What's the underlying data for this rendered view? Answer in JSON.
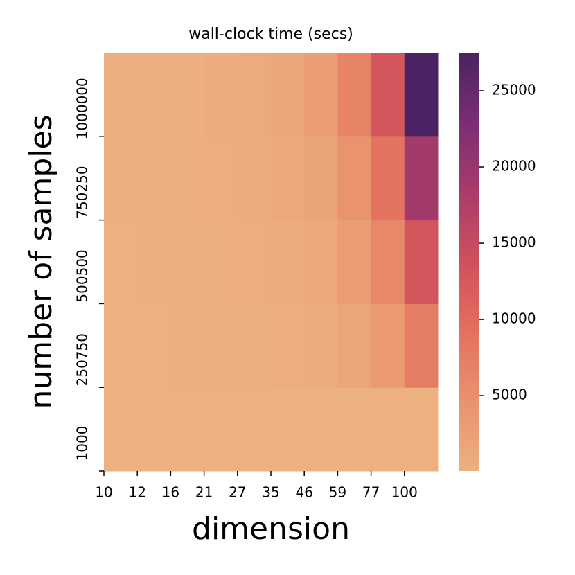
{
  "chart_data": {
    "type": "heatmap",
    "title": "wall-clock time (secs)",
    "x_label": "dimension",
    "y_label": "number of samples",
    "x_categories": [
      10,
      12,
      16,
      21,
      27,
      35,
      46,
      59,
      77,
      100
    ],
    "y_categories": [
      1000,
      250750,
      500500,
      750250,
      1000000
    ],
    "values": [
      [
        50,
        50,
        50,
        50,
        50,
        60,
        60,
        60,
        60,
        70
      ],
      [
        70,
        100,
        150,
        200,
        300,
        500,
        800,
        1800,
        3500,
        7500
      ],
      [
        100,
        150,
        200,
        300,
        500,
        800,
        1400,
        3000,
        6000,
        13000
      ],
      [
        150,
        200,
        300,
        450,
        700,
        1200,
        2100,
        4500,
        9000,
        19000
      ],
      [
        200,
        300,
        400,
        600,
        900,
        1600,
        2800,
        6500,
        13000,
        27500
      ]
    ],
    "clim": [
      50,
      27500
    ],
    "colorbar_ticks": [
      5000,
      10000,
      15000,
      20000,
      25000
    ],
    "colorscale": [
      "#edb081",
      "#e9926f",
      "#e3715f",
      "#d0505d",
      "#a93c6a",
      "#7b2d74",
      "#4b2362"
    ]
  }
}
